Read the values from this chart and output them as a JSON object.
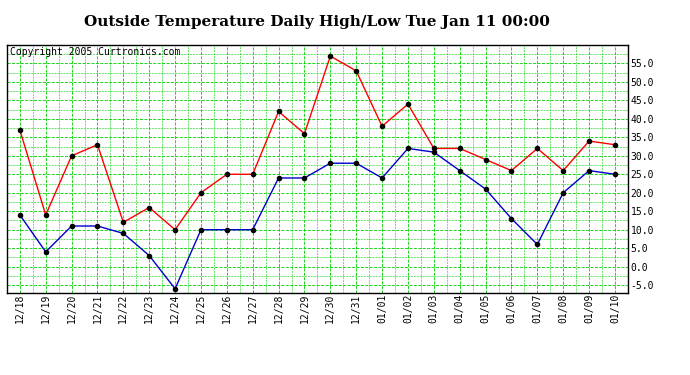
{
  "title": "Outside Temperature Daily High/Low Tue Jan 11 00:00",
  "copyright": "Copyright 2005 Curtronics.com",
  "x_labels": [
    "12/18",
    "12/19",
    "12/20",
    "12/21",
    "12/22",
    "12/23",
    "12/24",
    "12/25",
    "12/26",
    "12/27",
    "12/28",
    "12/29",
    "12/30",
    "12/31",
    "01/01",
    "01/02",
    "01/03",
    "01/04",
    "01/05",
    "01/06",
    "01/07",
    "01/08",
    "01/09",
    "01/10"
  ],
  "high_temps": [
    37,
    14,
    30,
    33,
    12,
    16,
    10,
    20,
    25,
    25,
    42,
    36,
    57,
    53,
    38,
    44,
    32,
    32,
    29,
    26,
    32,
    26,
    34,
    33
  ],
  "low_temps": [
    14,
    4,
    11,
    11,
    9,
    3,
    -6,
    10,
    10,
    10,
    24,
    24,
    28,
    28,
    24,
    32,
    31,
    26,
    21,
    13,
    6,
    20,
    26,
    25
  ],
  "high_color": "#ff0000",
  "low_color": "#0000cc",
  "background_color": "#ffffff",
  "grid_color": "#00cc00",
  "ylim": [
    -7,
    60
  ],
  "yticks": [
    -5.0,
    0.0,
    5.0,
    10.0,
    15.0,
    20.0,
    25.0,
    30.0,
    35.0,
    40.0,
    45.0,
    50.0,
    55.0
  ],
  "title_fontsize": 11,
  "copyright_fontsize": 7,
  "tick_fontsize": 7
}
